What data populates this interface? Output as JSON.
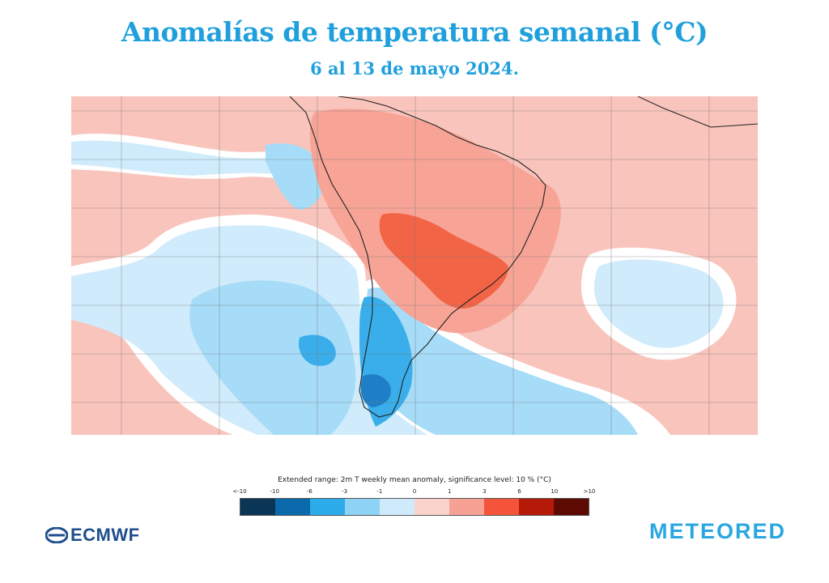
{
  "header": {
    "title": "Anomalías de temperatura semanal (°C)",
    "subtitle": "6 al 13 de mayo 2024.",
    "title_color": "#1fa0dc"
  },
  "legend": {
    "title": "Extended range: 2m T weekly mean anomaly, significance level: 10 % (°C)",
    "ticks": [
      "<-10",
      "-10",
      "-6",
      "-3",
      "-1",
      "0",
      "1",
      "3",
      "6",
      "10",
      ">10"
    ],
    "colors": [
      "#0b3556",
      "#0a6aab",
      "#2cacea",
      "#8ed3f6",
      "#cfeafb",
      "#fbd3cd",
      "#f7a195",
      "#f4553a",
      "#b51a08",
      "#5c0a02"
    ]
  },
  "map": {
    "colors": {
      "warm_light": "#f9c4bc",
      "warm_mid": "#f7a496",
      "warm_strong": "#f26446",
      "neutral": "#ffffff",
      "cool_light": "#d0ebfb",
      "cool_mid": "#a6dcf8",
      "cool_strong": "#3aaeea",
      "cool_deep": "#1e7fc6",
      "grid": "#7a7a7a",
      "coast": "#222222"
    }
  },
  "logos": {
    "ecmwf": "ECMWF",
    "meteored": "METEORED",
    "ecmwf_color": "#1f4e8c",
    "meteored_color": "#2aa7e0"
  }
}
